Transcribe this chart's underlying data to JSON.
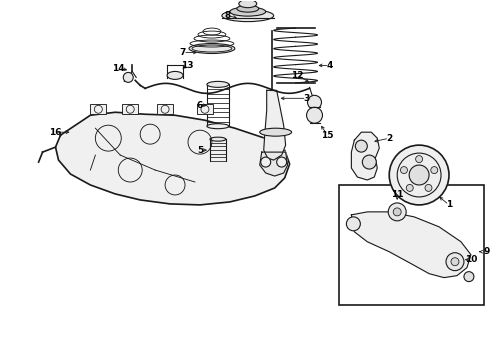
{
  "bg_color": "#ffffff",
  "line_color": "#1a1a1a",
  "fig_width": 4.9,
  "fig_height": 3.6,
  "dpi": 100,
  "label_fs": 6.5,
  "lw": 0.8
}
